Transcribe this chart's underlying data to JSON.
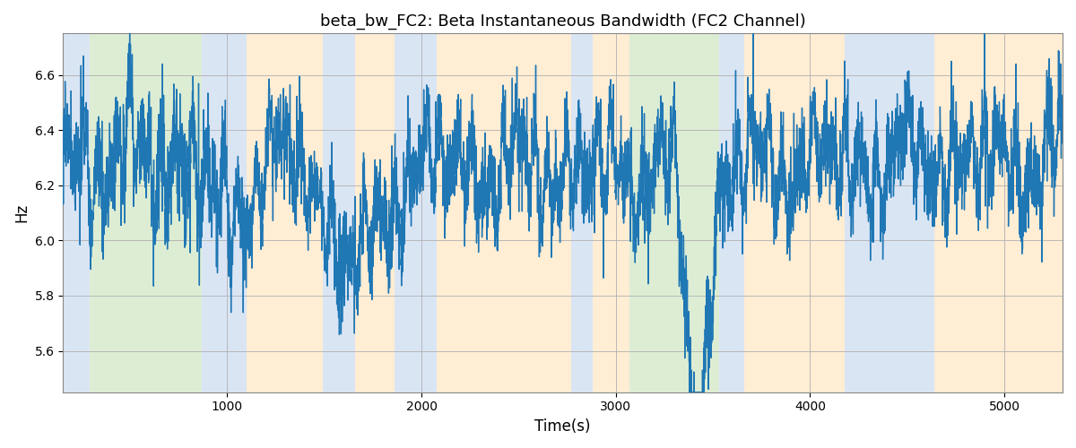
{
  "title": "beta_bw_FC2: Beta Instantaneous Bandwidth (FC2 Channel)",
  "xlabel": "Time(s)",
  "ylabel": "Hz",
  "xlim": [
    155,
    5300
  ],
  "ylim": [
    5.45,
    6.75
  ],
  "yticks": [
    5.6,
    5.8,
    6.0,
    6.2,
    6.4,
    6.6
  ],
  "xticks": [
    1000,
    2000,
    3000,
    4000,
    5000
  ],
  "line_color": "#1f77b4",
  "line_width": 1.0,
  "bg_color": "#ffffff",
  "grid_color": "#b0b0b0",
  "bands": [
    {
      "xstart": 155,
      "xend": 290,
      "color": "#aec6e8",
      "alpha": 0.45
    },
    {
      "xstart": 290,
      "xend": 870,
      "color": "#b5d9a0",
      "alpha": 0.45
    },
    {
      "xstart": 870,
      "xend": 1100,
      "color": "#aec6e8",
      "alpha": 0.45
    },
    {
      "xstart": 1100,
      "xend": 1490,
      "color": "#ffd9a0",
      "alpha": 0.45
    },
    {
      "xstart": 1490,
      "xend": 1660,
      "color": "#aec6e8",
      "alpha": 0.45
    },
    {
      "xstart": 1660,
      "xend": 1860,
      "color": "#ffd9a0",
      "alpha": 0.45
    },
    {
      "xstart": 1860,
      "xend": 2080,
      "color": "#aec6e8",
      "alpha": 0.45
    },
    {
      "xstart": 2080,
      "xend": 2770,
      "color": "#ffd9a0",
      "alpha": 0.45
    },
    {
      "xstart": 2770,
      "xend": 2880,
      "color": "#aec6e8",
      "alpha": 0.45
    },
    {
      "xstart": 2880,
      "xend": 3070,
      "color": "#ffd9a0",
      "alpha": 0.45
    },
    {
      "xstart": 3070,
      "xend": 3530,
      "color": "#b5d9a0",
      "alpha": 0.45
    },
    {
      "xstart": 3530,
      "xend": 3660,
      "color": "#aec6e8",
      "alpha": 0.45
    },
    {
      "xstart": 3660,
      "xend": 4180,
      "color": "#ffd9a0",
      "alpha": 0.45
    },
    {
      "xstart": 4180,
      "xend": 4640,
      "color": "#aec6e8",
      "alpha": 0.45
    },
    {
      "xstart": 4640,
      "xend": 4760,
      "color": "#ffd9a0",
      "alpha": 0.45
    },
    {
      "xstart": 4760,
      "xend": 5300,
      "color": "#ffd9a0",
      "alpha": 0.45
    }
  ],
  "seed": 17,
  "t_start": 155,
  "t_end": 5300,
  "n_points": 5150
}
